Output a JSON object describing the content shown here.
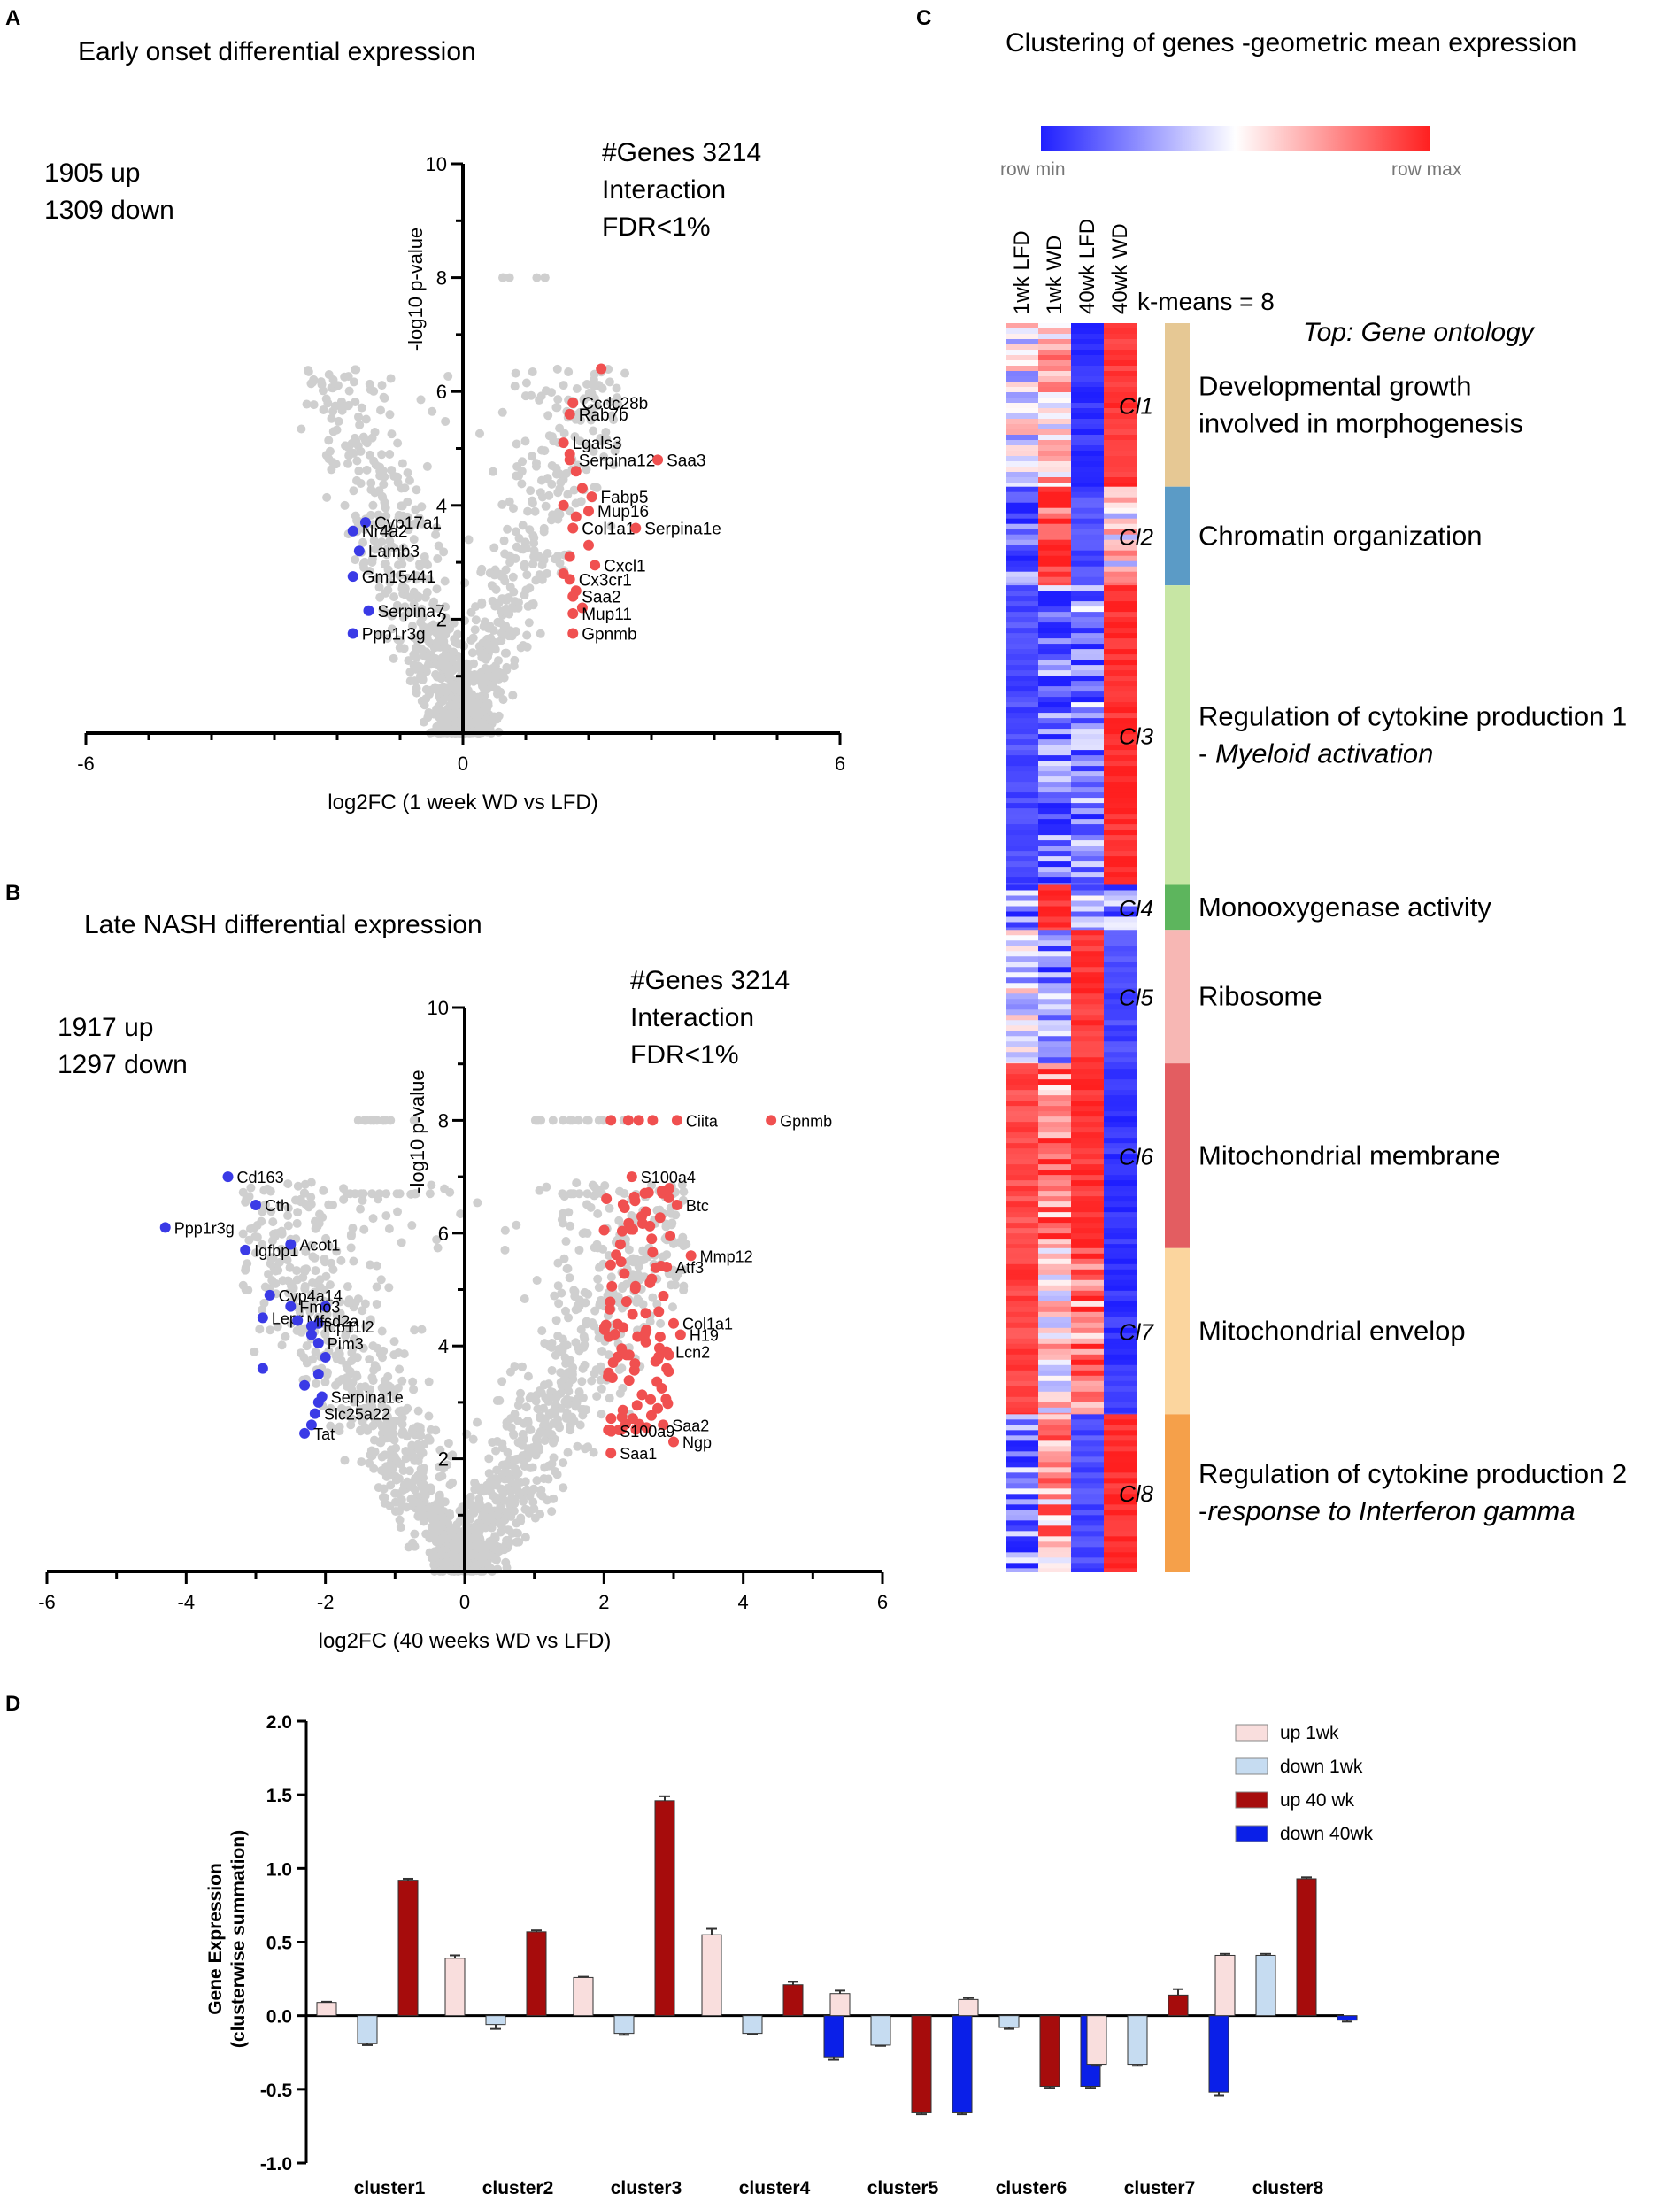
{
  "panel_labels": {
    "a": "A",
    "b": "B",
    "c": "C",
    "d": "D"
  },
  "chart_data": [
    {
      "id": "A",
      "type": "scatter",
      "title": "Early onset differential expression",
      "xlabel": "log2FC (1 week WD vs LFD)",
      "ylabel": "-log10 p-value",
      "xlim": [
        -6,
        6
      ],
      "ylim": [
        0,
        10
      ],
      "xticks": [
        -6,
        0,
        6
      ],
      "yticks": [
        2,
        4,
        6,
        8,
        10
      ],
      "summary": [
        "1905 up",
        "1309 down"
      ],
      "info": [
        "#Genes 3214",
        "Interaction",
        "FDR<1%"
      ],
      "up_genes": [
        {
          "label": "Ccdc28b",
          "x": 1.75,
          "y": 5.8
        },
        {
          "label": "Rab7b",
          "x": 1.7,
          "y": 5.6
        },
        {
          "label": "Lgals3",
          "x": 1.6,
          "y": 5.1
        },
        {
          "label": "Serpina12",
          "x": 1.7,
          "y": 4.8
        },
        {
          "label": "Saa3",
          "x": 3.1,
          "y": 4.8
        },
        {
          "label": "Fabp5",
          "x": 2.05,
          "y": 4.15
        },
        {
          "label": "Mup16",
          "x": 2.0,
          "y": 3.9
        },
        {
          "label": "Col1a1",
          "x": 1.75,
          "y": 3.6
        },
        {
          "label": "Serpina1e",
          "x": 2.75,
          "y": 3.6
        },
        {
          "label": "Cxcl1",
          "x": 2.1,
          "y": 2.95
        },
        {
          "label": "Cx3cr1",
          "x": 1.7,
          "y": 2.7
        },
        {
          "label": "Saa2",
          "x": 1.75,
          "y": 2.4
        },
        {
          "label": "Mup11",
          "x": 1.75,
          "y": 2.1
        },
        {
          "label": "Gpnmb",
          "x": 1.75,
          "y": 1.75
        }
      ],
      "down_genes": [
        {
          "label": "Cyp17a1",
          "x": -1.55,
          "y": 3.7
        },
        {
          "label": "Nr4a2",
          "x": -1.75,
          "y": 3.55
        },
        {
          "label": "Lamb3",
          "x": -1.65,
          "y": 3.2
        },
        {
          "label": "Gm15441",
          "x": -1.75,
          "y": 2.75
        },
        {
          "label": "Serpina7",
          "x": -1.5,
          "y": 2.15
        },
        {
          "label": "Ppp1r3g",
          "x": -1.75,
          "y": 1.75
        }
      ]
    },
    {
      "id": "B",
      "type": "scatter",
      "title": "Late NASH differential expression",
      "xlabel": "log2FC (40 weeks WD vs LFD)",
      "ylabel": "-log10 p-value",
      "xlim": [
        -6,
        6
      ],
      "ylim": [
        0,
        10
      ],
      "xticks": [
        -6,
        -4,
        -2,
        0,
        2,
        4,
        6
      ],
      "yticks": [
        2,
        4,
        6,
        8,
        10
      ],
      "summary": [
        "1917 up",
        "1297 down"
      ],
      "info": [
        "#Genes 3214",
        "Interaction",
        "FDR<1%"
      ],
      "up_genes": [
        {
          "label": "Ciita",
          "x": 3.05,
          "y": 8.0
        },
        {
          "label": "Gpnmb",
          "x": 4.4,
          "y": 8.0
        },
        {
          "label": "S100a4",
          "x": 2.4,
          "y": 7.0
        },
        {
          "label": "Btc",
          "x": 3.05,
          "y": 6.5
        },
        {
          "label": "Mmp12",
          "x": 3.25,
          "y": 5.6
        },
        {
          "label": "Atf3",
          "x": 2.9,
          "y": 5.4
        },
        {
          "label": "Col1a1",
          "x": 3.0,
          "y": 4.4
        },
        {
          "label": "H19",
          "x": 3.1,
          "y": 4.2
        },
        {
          "label": "Lcn2",
          "x": 2.9,
          "y": 3.9
        },
        {
          "label": "Saa2",
          "x": 2.85,
          "y": 2.6
        },
        {
          "label": "Ngp",
          "x": 3.0,
          "y": 2.3
        },
        {
          "label": "S100a9",
          "x": 2.1,
          "y": 2.5
        },
        {
          "label": "Saa1",
          "x": 2.1,
          "y": 2.1
        }
      ],
      "down_genes": [
        {
          "label": "Cd163",
          "x": -3.4,
          "y": 7.0
        },
        {
          "label": "Cth",
          "x": -3.0,
          "y": 6.5
        },
        {
          "label": "Ppp1r3g",
          "x": -4.3,
          "y": 6.1
        },
        {
          "label": "Igfbp1",
          "x": -3.15,
          "y": 5.7
        },
        {
          "label": "Acot1",
          "x": -2.5,
          "y": 5.8
        },
        {
          "label": "Cyp4a14",
          "x": -2.8,
          "y": 4.9
        },
        {
          "label": "Fmo3",
          "x": -2.5,
          "y": 4.7
        },
        {
          "label": "Lepr",
          "x": -2.9,
          "y": 4.5
        },
        {
          "label": "Mfsd2a",
          "x": -2.4,
          "y": 4.45
        },
        {
          "label": "Tcp11l2",
          "x": -2.2,
          "y": 4.35
        },
        {
          "label": "Pim3",
          "x": -2.1,
          "y": 4.05
        },
        {
          "label": "Serpina1e",
          "x": -2.05,
          "y": 3.1
        },
        {
          "label": "Slc25a22",
          "x": -2.15,
          "y": 2.8
        },
        {
          "label": "Tat",
          "x": -2.3,
          "y": 2.45
        }
      ]
    },
    {
      "id": "C",
      "type": "heatmap",
      "title": "Clustering of genes -geometric mean expression",
      "colorbar": {
        "min_label": "row min",
        "max_label": "row max",
        "low_color": "#1f1fff",
        "mid_color": "#ffffff",
        "high_color": "#ff1f1f"
      },
      "columns": [
        "1wk LFD",
        "1wk WD",
        "40wk LFD",
        "40wk WD"
      ],
      "kmeans_label": "k-means = 8",
      "ontology_header": "Top: Gene ontology",
      "clusters": [
        {
          "name": "Cl1",
          "fraction": 0.131,
          "color": "#e6c894",
          "pattern": [
            0.45,
            0.6,
            0.05,
            0.95
          ],
          "ontology": [
            "Developmental growth",
            "involved in morphogenesis"
          ]
        },
        {
          "name": "Cl2",
          "fraction": 0.079,
          "color": "#5b9bc6",
          "pattern": [
            0.15,
            0.85,
            0.1,
            0.55
          ],
          "ontology": [
            "Chromatin organization"
          ]
        },
        {
          "name": "Cl3",
          "fraction": 0.24,
          "color": "#c7e6a4",
          "pattern": [
            0.1,
            0.18,
            0.22,
            0.97
          ],
          "ontology": [
            "Regulation of cytokine production 1",
            "- Myeloid activation"
          ]
        },
        {
          "name": "Cl4",
          "fraction": 0.036,
          "color": "#5db55d",
          "pattern": [
            0.2,
            0.95,
            0.35,
            0.2
          ],
          "ontology": [
            "Monooxygenase activity"
          ]
        },
        {
          "name": "Cl5",
          "fraction": 0.107,
          "color": "#f7b7b4",
          "pattern": [
            0.45,
            0.25,
            0.95,
            0.1
          ],
          "ontology": [
            "Ribosome"
          ]
        },
        {
          "name": "Cl6",
          "fraction": 0.148,
          "color": "#e35d61",
          "pattern": [
            0.9,
            0.8,
            0.95,
            0.05
          ],
          "ontology": [
            "Mitochondrial membrane"
          ]
        },
        {
          "name": "Cl7",
          "fraction": 0.133,
          "color": "#fbd59e",
          "pattern": [
            0.92,
            0.55,
            0.8,
            0.05
          ],
          "ontology": [
            "Mitochondrial envelop"
          ]
        },
        {
          "name": "Cl8",
          "fraction": 0.126,
          "color": "#f5a04a",
          "pattern": [
            0.25,
            0.7,
            0.1,
            0.97
          ],
          "ontology": [
            "Regulation of cytokine production 2",
            "-response to Interferon gamma"
          ]
        }
      ]
    },
    {
      "id": "D",
      "type": "bar",
      "title": "",
      "xlabel": "",
      "ylabel": [
        "Gene Expression",
        "(clusterwise summation)"
      ],
      "ylim": [
        -1.0,
        2.0
      ],
      "yticks": [
        "-1.0",
        "-0.5",
        "0.0",
        "0.5",
        "1.0",
        "1.5",
        "2.0"
      ],
      "categories": [
        "cluster1",
        "cluster2",
        "cluster3",
        "cluster4",
        "cluster5",
        "cluster6",
        "cluster7",
        "cluster8"
      ],
      "series": [
        {
          "name": "up 1wk",
          "color": "#f9dedd",
          "values": [
            0.09,
            0.39,
            0.26,
            0.55,
            0.15,
            0.11,
            -0.33,
            0.41
          ]
        },
        {
          "name": "down 1wk",
          "color": "#c6dcf1",
          "values": [
            -0.19,
            -0.06,
            -0.12,
            -0.12,
            -0.2,
            -0.08,
            -0.33,
            0.41
          ]
        },
        {
          "name": "up 40 wk",
          "color": "#a60c0c",
          "values": [
            0.92,
            0.57,
            1.46,
            0.21,
            -0.66,
            -0.48,
            0.14,
            0.93
          ]
        },
        {
          "name": "down 40wk",
          "color": "#0a1fe8",
          "values": [
            null,
            null,
            null,
            -0.28,
            -0.66,
            -0.48,
            -0.52,
            -0.03
          ]
        }
      ],
      "error": [
        [
          0.005,
          0.02,
          0.005,
          0.04,
          0.02,
          0.01,
          0.01,
          0.01
        ],
        [
          0.01,
          0.03,
          0.01,
          0.005,
          0.005,
          0.01,
          0.01,
          0.01
        ],
        [
          0.01,
          0.01,
          0.03,
          0.02,
          0.01,
          0.01,
          0.04,
          0.01
        ],
        [
          0,
          0,
          0,
          0.02,
          0.01,
          0.01,
          0.02,
          0.01
        ]
      ],
      "legend_position": "top-right"
    }
  ]
}
